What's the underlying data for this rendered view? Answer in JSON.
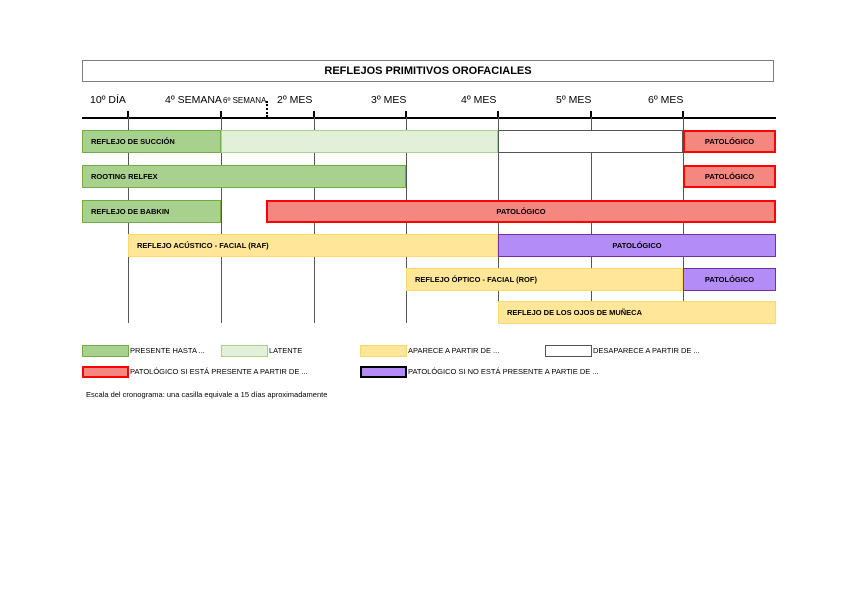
{
  "title": "REFLEJOS PRIMITIVOS OROFACIALES",
  "timeline": {
    "ticks": [
      {
        "label": "10º DÍA",
        "small": false
      },
      {
        "label": "4º SEMANA",
        "small": false
      },
      {
        "label": "6º SEMANA",
        "small": true
      },
      {
        "label": "2º MES",
        "small": false
      },
      {
        "label": "3º MES",
        "small": false
      },
      {
        "label": "4º  MES",
        "small": false
      },
      {
        "label": "5º MES",
        "small": false
      },
      {
        "label": "6º MES",
        "small": false
      }
    ]
  },
  "rows": [
    {
      "name": "reflejo-de-succion",
      "segments": [
        {
          "type": "present",
          "label": "REFLEJO DE SUCCIÓN"
        },
        {
          "type": "latent",
          "label": ""
        },
        {
          "type": "disappears",
          "label": ""
        },
        {
          "type": "pathological_if_present",
          "label": "PATOLÓGICO"
        }
      ]
    },
    {
      "name": "rooting-reflex",
      "segments": [
        {
          "type": "present",
          "label": "ROOTING RELFEX"
        },
        {
          "type": "pathological_if_present",
          "label": "PATOLÓGICO"
        }
      ]
    },
    {
      "name": "reflejo-de-babkin",
      "segments": [
        {
          "type": "present",
          "label": "REFLEJO DE BABKIN"
        },
        {
          "type": "pathological_if_present",
          "label": "PATOLÓGICO"
        }
      ]
    },
    {
      "name": "reflejo-acustico-facial",
      "segments": [
        {
          "type": "appears",
          "label": "REFLEJO ACÚSTICO - FACIAL (RAF)"
        },
        {
          "type": "pathological_if_absent",
          "label": "PATOLÓGICO"
        }
      ]
    },
    {
      "name": "reflejo-optico-facial",
      "segments": [
        {
          "type": "appears",
          "label": "REFLEJO ÓPTICO - FACIAL (ROF)"
        },
        {
          "type": "pathological_if_absent",
          "label": "PATOLÓGICO"
        }
      ]
    },
    {
      "name": "reflejo-ojos-de-muneca",
      "segments": [
        {
          "type": "appears",
          "label": "REFLEJO DE LOS OJOS DE MUÑECA"
        }
      ]
    }
  ],
  "legend": [
    {
      "type": "present",
      "label": "PRESENTE HASTA ...",
      "color": "#a9d18e"
    },
    {
      "type": "latent",
      "label": "LATENTE",
      "color": "#e2efd9"
    },
    {
      "type": "appears",
      "label": "APARECE A PARTIR DE ...",
      "color": "#ffe699"
    },
    {
      "type": "disappears",
      "label": "DESAPARECE A PARTIR DE ...",
      "color": "#ffffff"
    },
    {
      "type": "pathological_if_present",
      "label": "PATOLÓGICO SI ESTÁ PRESENTE A PARTIR DE ...",
      "color": "#f4877f"
    },
    {
      "type": "pathological_if_absent",
      "label": "PATOLÓGICO SI NO ESTÁ PRESENTE A PARTIE DE ...",
      "color": "#b48cf7"
    }
  ],
  "note": "Escala del cronograma: una casilla equivale a 15 días aproximadamente"
}
